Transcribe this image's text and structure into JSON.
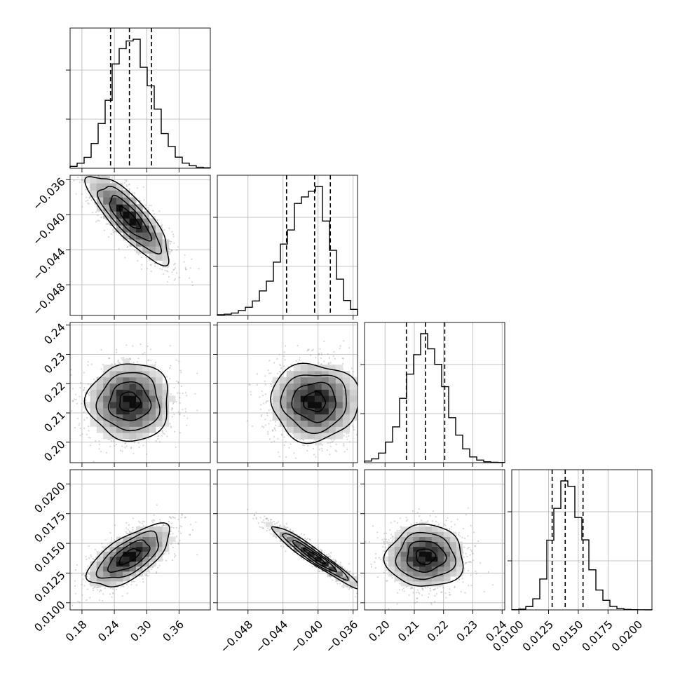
{
  "chart_data": {
    "type": "corner",
    "title": "",
    "params": [
      {
        "index": 0,
        "median": 0.268,
        "q16": 0.233,
        "q84": 0.309,
        "sigma": 0.038,
        "range": [
          0.158,
          0.418
        ],
        "ticks": [
          0.18,
          0.24,
          0.3,
          0.36
        ],
        "tick_labels": [
          "0.18",
          "0.24",
          "0.30",
          "0.36"
        ],
        "y_ticks": [
          -0.036,
          -0.04,
          -0.044,
          -0.048
        ],
        "y_tick_labels": [
          "−0.036",
          "−0.040",
          "−0.044",
          "−0.048"
        ]
      },
      {
        "index": 1,
        "median": -0.0404,
        "q16": -0.0436,
        "q84": -0.0386,
        "sigma": 0.0025,
        "range": [
          -0.0515,
          -0.0355
        ],
        "ticks": [
          -0.048,
          -0.044,
          -0.04,
          -0.036
        ],
        "tick_labels": [
          "−0.048",
          "−0.044",
          "−0.040",
          "−0.036"
        ],
        "y_ticks": [
          0.24,
          0.23,
          0.22,
          0.21,
          0.2
        ],
        "y_tick_labels": [
          "0.24",
          "0.23",
          "0.22",
          "0.21",
          "0.20"
        ]
      },
      {
        "index": 2,
        "median": 0.2138,
        "q16": 0.2073,
        "q84": 0.2204,
        "sigma": 0.0066,
        "range": [
          0.193,
          0.2409
        ],
        "ticks": [
          0.2,
          0.21,
          0.22,
          0.23,
          0.24
        ],
        "tick_labels": [
          "0.20",
          "0.21",
          "0.22",
          "0.23",
          "0.24"
        ],
        "y_ticks": [
          0.02,
          0.0175,
          0.015,
          0.0125,
          0.01
        ],
        "y_tick_labels": [
          "0.0200",
          "0.0175",
          "0.0150",
          "0.0125",
          "0.0100"
        ]
      },
      {
        "index": 3,
        "median": 0.0139,
        "q16": 0.0128,
        "q84": 0.0154,
        "sigma": 0.0013,
        "range": [
          0.0094,
          0.0212
        ],
        "ticks": [
          0.01,
          0.0125,
          0.015,
          0.0175,
          0.02
        ],
        "tick_labels": [
          "0.0100",
          "0.0125",
          "0.0150",
          "0.0175",
          "0.0200"
        ]
      }
    ],
    "correlations": {
      "1,0": -0.82,
      "2,0": 0.0,
      "2,1": 0.0,
      "3,0": 0.66,
      "3,1": -0.96,
      "3,2": 0.0
    },
    "histogram_bins": 20,
    "quantiles": [
      0.16,
      0.5,
      0.84
    ],
    "contour_levels_sigma": [
      0.5,
      1.0,
      1.5,
      2.0
    ],
    "grid": true,
    "colors": {
      "line": "#000000",
      "grid": "#b0b0b0",
      "points": "#8a8a8a",
      "background": "#ffffff"
    }
  }
}
